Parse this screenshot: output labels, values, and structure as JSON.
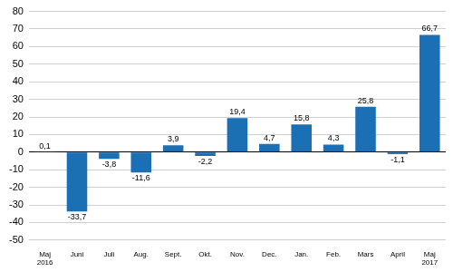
{
  "chart_data": {
    "type": "bar",
    "categories": [
      "Maj 2016",
      "Juni",
      "Juli",
      "Aug.",
      "Sept.",
      "Okt.",
      "Nov.",
      "Dec.",
      "Jan.",
      "Feb.",
      "Mars",
      "April",
      "Maj 2017"
    ],
    "values": [
      0.1,
      -33.7,
      -3.8,
      -11.6,
      3.9,
      -2.2,
      19.4,
      4.7,
      15.8,
      4.3,
      25.8,
      -1.1,
      66.7
    ],
    "value_labels": [
      "0,1",
      "-33,7",
      "-3,8",
      "-11,6",
      "3,9",
      "-2,2",
      "19,4",
      "4,7",
      "15,8",
      "4,3",
      "25,8",
      "-1,1",
      "66,7"
    ],
    "color": "#1b6fb5",
    "ylim": [
      -50,
      80
    ],
    "yticks": [
      -50,
      -40,
      -30,
      -20,
      -10,
      0,
      10,
      20,
      30,
      40,
      50,
      60,
      70,
      80
    ],
    "grid": true,
    "data_labels": true
  }
}
